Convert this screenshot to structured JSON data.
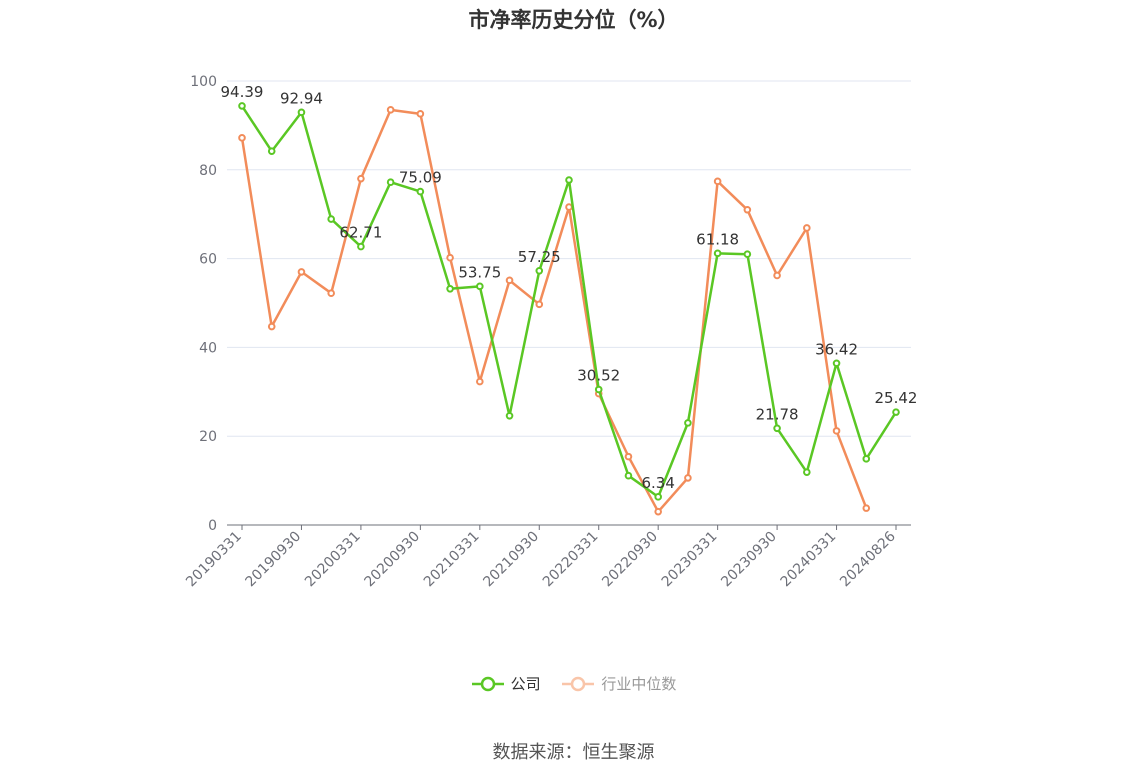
{
  "title": "市净率历史分位（%）",
  "legend": [
    {
      "label": "公司",
      "color": "#5ac724"
    },
    {
      "label": "行业中位数",
      "color": "#f28c5a"
    }
  ],
  "source": "数据来源：恒生聚源",
  "chart_data": {
    "type": "line",
    "title": "市净率历史分位（%）",
    "ylim": [
      0,
      100
    ],
    "yticks": [
      0,
      20,
      40,
      60,
      80,
      100
    ],
    "x_tick_labels": [
      "20190331",
      "20190930",
      "20200331",
      "20200930",
      "20210331",
      "20210930",
      "20220331",
      "20220930",
      "20230331",
      "20230930",
      "20240331",
      "20240826"
    ],
    "grid": true,
    "legend_position": "bottom",
    "series": [
      {
        "name": "公司",
        "color": "#5ac724",
        "values": [
          94.39,
          84.2,
          92.94,
          68.9,
          62.71,
          77.2,
          75.09,
          53.2,
          53.75,
          24.6,
          57.25,
          77.7,
          30.52,
          11.1,
          6.34,
          23.0,
          61.18,
          61.0,
          21.78,
          11.9,
          36.42,
          14.9,
          25.42
        ],
        "labels": [
          "94.39",
          "",
          "92.94",
          "",
          "62.71",
          "",
          "75.09",
          "",
          "53.75",
          "",
          "57.25",
          "",
          "30.52",
          "",
          "6.34",
          "",
          "61.18",
          "",
          "21.78",
          "",
          "36.42",
          "",
          "25.42"
        ]
      },
      {
        "name": "行业中位数",
        "color": "#f28c5a",
        "values": [
          87.2,
          44.7,
          57.0,
          52.2,
          78.0,
          93.5,
          92.6,
          60.2,
          32.3,
          55.1,
          49.7,
          71.6,
          29.6,
          15.4,
          3.0,
          10.6,
          77.4,
          71.0,
          56.2,
          66.9,
          21.2,
          3.8,
          null
        ]
      }
    ]
  }
}
